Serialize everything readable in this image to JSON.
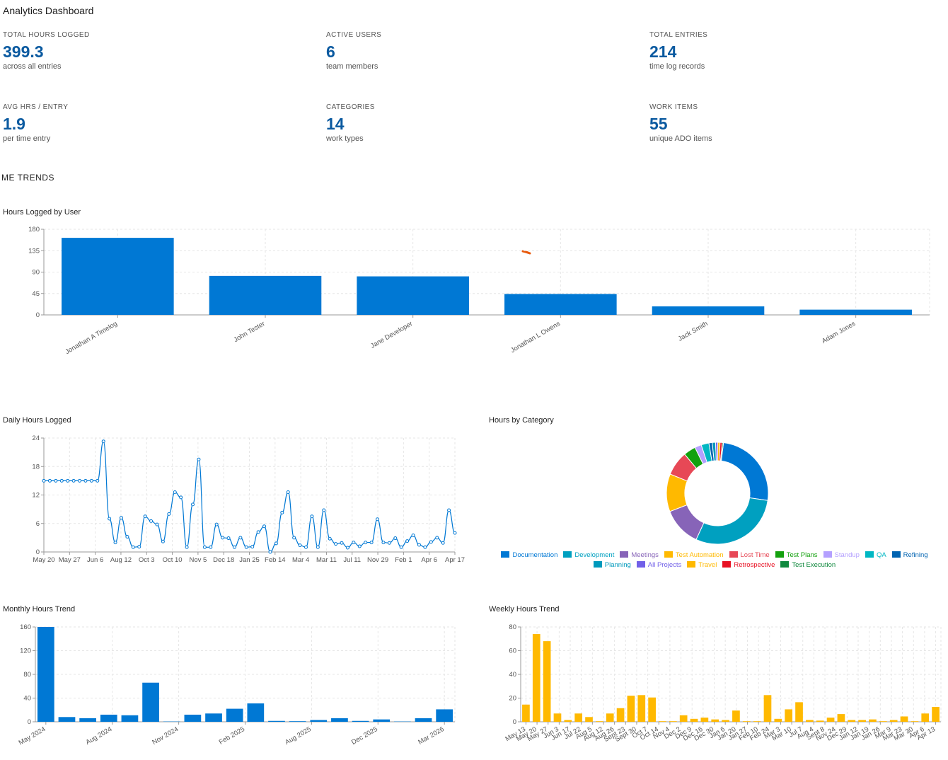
{
  "app": {
    "title": "Analytics Dashboard"
  },
  "kpis": [
    {
      "label": "TOTAL HOURS LOGGED",
      "value": "399.3",
      "sub": "across all entries"
    },
    {
      "label": "ACTIVE USERS",
      "value": "6",
      "sub": "team members"
    },
    {
      "label": "TOTAL ENTRIES",
      "value": "214",
      "sub": "time log records"
    },
    {
      "label": "AVG HRS / ENTRY",
      "value": "1.9",
      "sub": "per time entry"
    },
    {
      "label": "CATEGORIES",
      "value": "14",
      "sub": "work types"
    },
    {
      "label": "WORK ITEMS",
      "value": "55",
      "sub": "unique ADO items"
    }
  ],
  "section": {
    "heading": "ME TRENDS"
  },
  "colors": {
    "primary": "#0078d4",
    "gold": "#ffb900",
    "grid": "#e6e6e6",
    "axis": "#999999",
    "kpi": "#0b5aa0"
  },
  "chart_data": [
    {
      "id": "hours_by_user",
      "type": "bar",
      "title": "Hours Logged by User",
      "categories": [
        "Jonathan A Timelog",
        "John Tester",
        "Jane Developer",
        "Jonathan L Owens",
        "Jack Smith",
        "Adam Jones"
      ],
      "values": [
        162,
        82,
        81,
        44,
        18,
        11
      ],
      "ylim": [
        0,
        180
      ],
      "yticks": [
        0,
        45,
        90,
        135,
        180
      ],
      "color": "#0078d4",
      "grid": true
    },
    {
      "id": "daily_hours",
      "type": "line",
      "title": "Daily Hours Logged",
      "xticks": [
        "May 20",
        "May 27",
        "Jun 6",
        "Aug 12",
        "Oct 3",
        "Oct 10",
        "Nov 5",
        "Dec 18",
        "Jan 25",
        "Feb 14",
        "Mar 4",
        "Mar 11",
        "Jul 11",
        "Nov 29",
        "Feb 1",
        "Apr 6",
        "Apr 17"
      ],
      "values": [
        15,
        15,
        15,
        15,
        15,
        15,
        15,
        15,
        15,
        15,
        23.3,
        7,
        2,
        7.2,
        3.2,
        1,
        1.1,
        7.5,
        6.5,
        5.8,
        2.2,
        8,
        12.6,
        11.5,
        1,
        10,
        19.5,
        1,
        1,
        5.8,
        3,
        2.9,
        1,
        3,
        1,
        1.1,
        4.2,
        5.4,
        0,
        1.8,
        8.3,
        12.6,
        3,
        1.4,
        1,
        7.5,
        1,
        8.8,
        2.8,
        1.7,
        1.9,
        0.9,
        2,
        1.2,
        2,
        2,
        6.9,
        2,
        1.9,
        2.9,
        1,
        2.3,
        3.5,
        1.5,
        1,
        2.1,
        3,
        1.9,
        8.8,
        4
      ],
      "ylim": [
        0,
        24
      ],
      "yticks": [
        0,
        6,
        12,
        18,
        24
      ],
      "color": "#0078d4",
      "grid": true
    },
    {
      "id": "hours_by_category",
      "type": "pie",
      "title": "Hours by Category",
      "labels": [
        "Documentation",
        "Development",
        "Meetings",
        "Test Automation",
        "Lost Time",
        "Test Plans",
        "Standup",
        "QA",
        "Refining",
        "Planning",
        "All Projects",
        "Travel",
        "Retrospective",
        "Test Execution"
      ],
      "values": [
        72,
        84,
        35,
        34,
        22,
        11,
        6,
        7,
        3,
        3,
        2,
        2,
        2,
        1
      ],
      "colors": [
        "#0078d4",
        "#00a0c0",
        "#8764b8",
        "#ffb900",
        "#e74856",
        "#13a10e",
        "#b4a0ff",
        "#00b7c3",
        "#0063b1",
        "#0099bc",
        "#7160e8",
        "#ffb900",
        "#e81123",
        "#10893e"
      ],
      "legend": "bottom"
    },
    {
      "id": "monthly_hours",
      "type": "bar",
      "title": "Monthly Hours Trend",
      "xticks": [
        "May 2024",
        "Aug 2024",
        "Nov 2024",
        "Feb 2025",
        "Aug 2025",
        "Dec 2025",
        "Mar 2026"
      ],
      "values": [
        160,
        8,
        6,
        12,
        11,
        66,
        0.5,
        12,
        14,
        22,
        31,
        1.5,
        1,
        3,
        6,
        1.5,
        4,
        0.5,
        6,
        21
      ],
      "ylim": [
        0,
        160
      ],
      "yticks": [
        0,
        40,
        80,
        120,
        160
      ],
      "color": "#0078d4",
      "grid": true
    },
    {
      "id": "weekly_hours",
      "type": "bar",
      "title": "Weekly Hours Trend",
      "xticks": [
        "May 13",
        "May 20",
        "May 27",
        "Jun 3",
        "Jun 17",
        "Jul 22",
        "Aug 5",
        "Aug 12",
        "Aug 26",
        "Sept 23",
        "Sept 30",
        "Oct 7",
        "Oct 14",
        "Nov 4",
        "Dec 2",
        "Dec 9",
        "Dec 16",
        "Dec 30",
        "Jan 6",
        "Jan 20",
        "Jan 27",
        "Feb 10",
        "Feb 24",
        "Mar 3",
        "Mar 10",
        "Jul 7",
        "Aug 4",
        "Sept 8",
        "Nov 24",
        "Dec 29",
        "Jan 12",
        "Jan 19",
        "Jan 26",
        "Mar 9",
        "Mar 23",
        "Mar 30",
        "Apr 6",
        "Apr 13"
      ],
      "values": [
        14.5,
        74,
        68,
        7,
        1.5,
        7,
        4,
        0.5,
        7,
        11.5,
        22,
        22.5,
        20.5,
        0.5,
        0.5,
        5.5,
        2.5,
        3.5,
        2,
        1.5,
        9.5,
        0.5,
        0.5,
        22.5,
        2.5,
        10.5,
        16.5,
        1.5,
        1,
        3.5,
        6.5,
        1.5,
        1.5,
        2,
        0.5,
        1.5,
        4.5,
        0.5,
        7,
        12.5
      ],
      "ylim": [
        0,
        80
      ],
      "yticks": [
        0,
        20,
        40,
        60,
        80
      ],
      "color": "#ffb900",
      "grid": true
    }
  ]
}
